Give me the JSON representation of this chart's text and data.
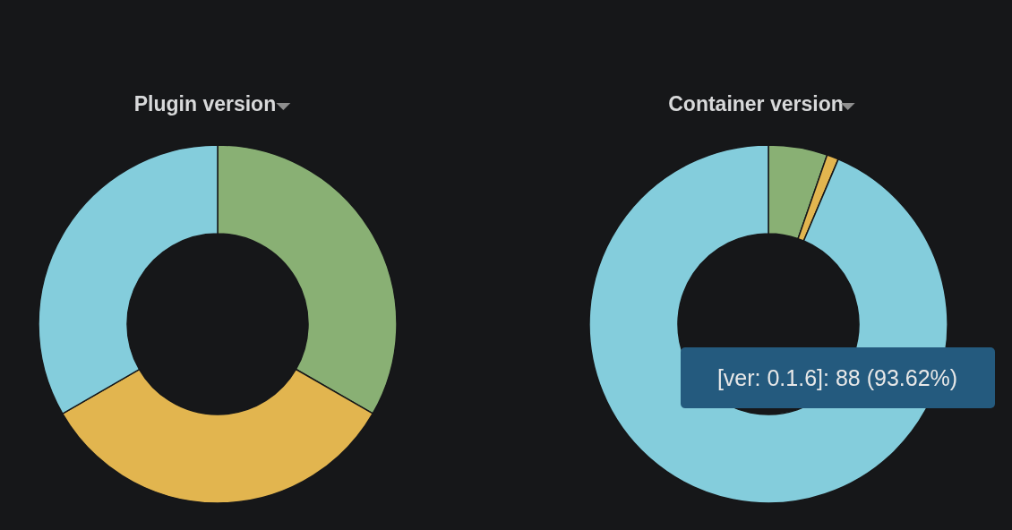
{
  "chart_data": [
    {
      "type": "donut",
      "title": "Plugin version",
      "categories": [
        null,
        null,
        null
      ],
      "values": [
        33.33,
        33.33,
        33.34
      ],
      "colors": [
        "#89b074",
        "#e2b54f",
        "#84cddc"
      ]
    },
    {
      "type": "donut",
      "title": "Container version",
      "categories": [
        null,
        null,
        null
      ],
      "values": [
        5.32,
        1.06,
        93.62
      ],
      "colors": [
        "#89b074",
        "#e2b54f",
        "#84cddc"
      ],
      "annotations": [
        "[ver: 0.1.6]: 88 (93.62%)"
      ]
    }
  ]
}
